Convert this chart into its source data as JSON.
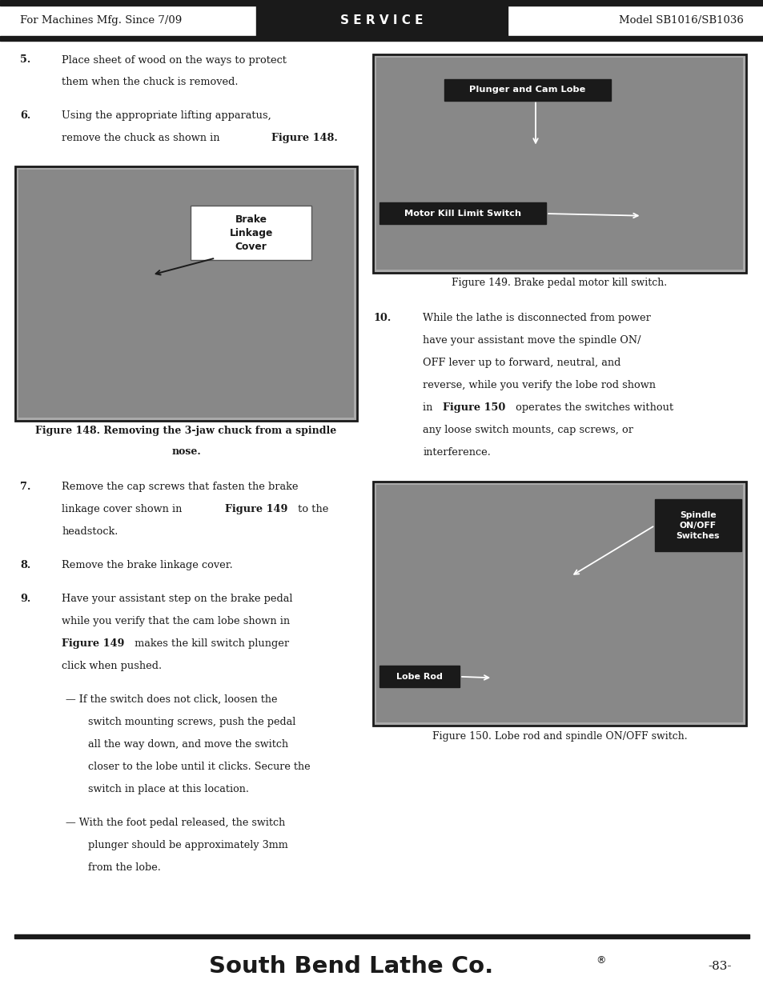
{
  "page_width": 9.54,
  "page_height": 12.35,
  "bg_color": "#ffffff",
  "black": "#1a1a1a",
  "white": "#ffffff",
  "gray_img": "#999999",
  "header_left": "For Machines Mfg. Since 7/09",
  "header_center": "S E R V I C E",
  "header_right": "Model SB1016/SB1036",
  "footer_company": "South Bend Lathe Co.",
  "footer_reg": "®",
  "footer_page": "-83-",
  "fig148_caption_l1": "Figure 148. Removing the 3-jaw chuck from a spindle",
  "fig148_caption_l2": "nose.",
  "fig149_caption": "Figure 149. Brake pedal motor kill switch.",
  "fig150_caption": "Figure 150. Lobe rod and spindle ON/OFF switch.",
  "fig148_label": "Brake\nLinkage\nCover",
  "fig149_label1": "Plunger and Cam Lobe",
  "fig149_label2": "Motor Kill Limit Switch",
  "fig150_label1": "Spindle\nON/OFF\nSwitches",
  "fig150_label2": "Lobe Rod",
  "item5_l1": "Place sheet of wood on the ways to protect",
  "item5_l2": "them when the chuck is removed.",
  "item6_l1": "Using the appropriate lifting apparatus,",
  "item6_l2a": "remove the chuck as shown in ",
  "item6_l2b": "Figure 148.",
  "item7_l1": "Remove the cap screws that fasten the brake",
  "item7_l2a": "linkage cover shown in ",
  "item7_l2b": "Figure 149",
  "item7_l2c": " to the",
  "item7_l3": "headstock.",
  "item8": "Remove the brake linkage cover.",
  "item9_l1": "Have your assistant step on the brake pedal",
  "item9_l2": "while you verify that the cam lobe shown in",
  "item9_l3a": "Figure 149",
  "item9_l3b": " makes the kill switch plunger",
  "item9_l4": "click when pushed.",
  "sub1_l1": "— If the switch does not click, loosen the",
  "sub1_l2": "switch mounting screws, push the pedal",
  "sub1_l3": "all the way down, and move the switch",
  "sub1_l4": "closer to the lobe until it clicks. Secure the",
  "sub1_l5": "switch in place at this location.",
  "sub2_l1": "— With the foot pedal released, the switch",
  "sub2_l2": "plunger should be approximately 3mm",
  "sub2_l3": "from the lobe.",
  "item10_l1": "While the lathe is disconnected from power",
  "item10_l2": "have your assistant move the spindle ON/",
  "item10_l3": "OFF lever up to forward, neutral, and",
  "item10_l4": "reverse, while you verify the lobe rod shown",
  "item10_l5a": "in ",
  "item10_l5b": "Figure 150",
  "item10_l5c": " operates the switches without",
  "item10_l6": "any loose switch mounts, cap screws, or",
  "item10_l7": "interference."
}
